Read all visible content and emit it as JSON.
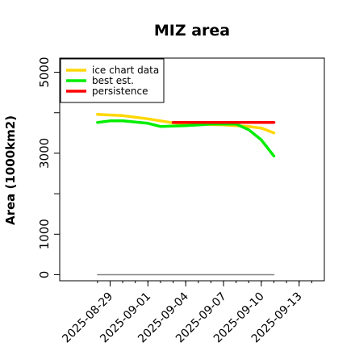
{
  "chart_data": {
    "type": "line",
    "title": "MIZ area",
    "xlabel": "",
    "ylabel": "Area (1000km2)",
    "xlim": [
      "2025-08-25",
      "2025-09-15"
    ],
    "ylim": [
      -150,
      5350
    ],
    "yticks": [
      0,
      1000,
      3000,
      5000
    ],
    "xticks": [
      "2025-08-29",
      "2025-09-01",
      "2025-09-04",
      "2025-09-07",
      "2025-09-10",
      "2025-09-13"
    ],
    "grid": false,
    "legend_position": "top-left",
    "series": [
      {
        "name": "ice chart data",
        "color": "#ffd700",
        "x": [
          "2025-08-28",
          "2025-08-30",
          "2025-09-01",
          "2025-09-03",
          "2025-09-05",
          "2025-09-07",
          "2025-09-09",
          "2025-09-10",
          "2025-09-11"
        ],
        "y": [
          3960,
          3930,
          3850,
          3750,
          3720,
          3700,
          3660,
          3620,
          3500
        ]
      },
      {
        "name": "best est.",
        "color": "#00ee00",
        "x": [
          "2025-08-28",
          "2025-08-29",
          "2025-08-30",
          "2025-09-01",
          "2025-09-02",
          "2025-09-04",
          "2025-09-06",
          "2025-09-08",
          "2025-09-09",
          "2025-09-10",
          "2025-09-11"
        ],
        "y": [
          3760,
          3800,
          3800,
          3740,
          3660,
          3680,
          3720,
          3720,
          3580,
          3330,
          2930
        ]
      },
      {
        "name": "persistence",
        "color": "#ff0000",
        "x": [
          "2025-09-03",
          "2025-09-11"
        ],
        "y": [
          3760,
          3760
        ]
      },
      {
        "name": "",
        "color": "#808080",
        "x": [
          "2025-08-28",
          "2025-09-11"
        ],
        "y": [
          0,
          0
        ]
      }
    ]
  }
}
